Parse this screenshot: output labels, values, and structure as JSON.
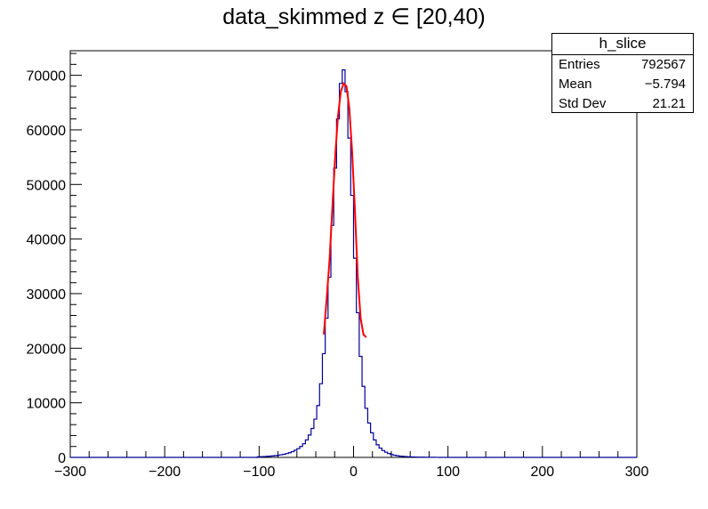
{
  "title": "data_skimmed z  ∈ [20,40)",
  "stats": {
    "name": "h_slice",
    "rows": [
      {
        "label": "Entries",
        "value": "792567"
      },
      {
        "label": "Mean",
        "value": "−5.794"
      },
      {
        "label": "Std Dev",
        "value": "21.21"
      }
    ]
  },
  "colors": {
    "histogram": "#000099",
    "fit": "#ff0000",
    "axis": "#000000"
  },
  "chart_data": {
    "type": "histogram",
    "xlim": [
      -300,
      300
    ],
    "ylim": [
      0,
      74500
    ],
    "bin_width": 3,
    "xticks": [
      -300,
      -200,
      -100,
      0,
      100,
      200,
      300
    ],
    "xtick_labels": [
      "−300",
      "−200",
      "−100",
      "0",
      "100",
      "200",
      "300"
    ],
    "yticks": [
      0,
      10000,
      20000,
      30000,
      40000,
      50000,
      60000,
      70000
    ],
    "ytick_labels": [
      "0",
      "10000",
      "20000",
      "30000",
      "40000",
      "50000",
      "60000",
      "70000"
    ],
    "grid": false,
    "legend": "top-right",
    "xlabel": "",
    "ylabel": "",
    "series": [
      {
        "kind": "histogram",
        "bin_centers": [
          -100.5,
          -97.5,
          -94.5,
          -91.5,
          -88.5,
          -85.5,
          -82.5,
          -79.5,
          -76.5,
          -73.5,
          -70.5,
          -67.5,
          -64.5,
          -61.5,
          -58.5,
          -55.5,
          -52.5,
          -49.5,
          -46.5,
          -43.5,
          -40.5,
          -37.5,
          -34.5,
          -31.5,
          -28.5,
          -25.5,
          -22.5,
          -19.5,
          -16.5,
          -13.5,
          -10.5,
          -7.5,
          -4.5,
          -1.5,
          1.5,
          4.5,
          7.5,
          10.5,
          13.5,
          16.5,
          19.5,
          22.5,
          25.5,
          28.5,
          31.5,
          34.5,
          37.5,
          40.5,
          43.5,
          46.5,
          49.5,
          52.5,
          55.5,
          58.5,
          61.5,
          64.5,
          67.5,
          70.5,
          73.5,
          76.5,
          79.5,
          82.5,
          85.5,
          88.5
        ],
        "values": [
          100,
          120,
          150,
          180,
          220,
          270,
          330,
          400,
          480,
          580,
          700,
          850,
          1050,
          1300,
          1600,
          2000,
          2500,
          3200,
          4100,
          5300,
          7000,
          9500,
          13500,
          19000,
          25500,
          33000,
          42500,
          53000,
          62000,
          68500,
          71000,
          67000,
          58500,
          48000,
          36500,
          26500,
          18500,
          13000,
          9000,
          6300,
          4500,
          3200,
          2300,
          1700,
          1250,
          950,
          700,
          520,
          400,
          300,
          230,
          180,
          140,
          110,
          90,
          70,
          55,
          45,
          35,
          30,
          25,
          20,
          15,
          10
        ]
      },
      {
        "kind": "fit",
        "x": [
          -31.5,
          -28.5,
          -25.5,
          -22.5,
          -19.5,
          -16.5,
          -13.5,
          -10.5,
          -7.5,
          -4.5,
          -1.5,
          1.5,
          4.5,
          7.5,
          10.5,
          13.5
        ],
        "values": [
          22500,
          29000,
          36000,
          45500,
          55000,
          62500,
          67000,
          68500,
          68000,
          64000,
          56000,
          45000,
          33000,
          25500,
          22500,
          22000
        ]
      }
    ]
  }
}
